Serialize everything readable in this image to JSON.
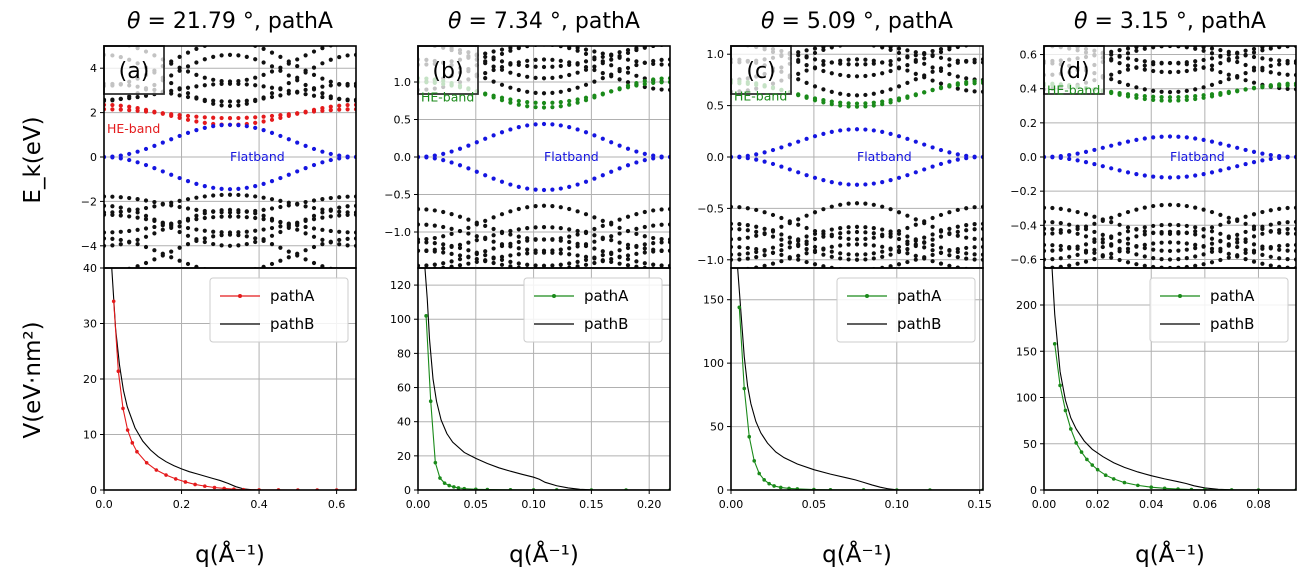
{
  "y_label_top": "E_k(eV)",
  "y_label_bottom": "V(eV·nm²)",
  "x_label": "q(Å⁻¹)",
  "chart_data": [
    {
      "type": "line",
      "panel_letter": "(a)",
      "title_theta": "21.79",
      "title_suffix": ", pathA",
      "accent_color": "#e41a1c",
      "top": {
        "ylim": [
          -5,
          5
        ],
        "yticks": [
          -4,
          -2,
          0,
          2,
          4
        ],
        "he_label": "HE-band",
        "flat_label": "Flatband",
        "he_band": {
          "min": 1.45,
          "max": 2.35,
          "alt_min": 1.75,
          "alt_max": 2.15
        },
        "flat_band": {
          "amplitude": 1.45,
          "center": 0.0
        },
        "remote_bands_upper": [
          {
            "min": 2.5,
            "max": 3.3
          },
          {
            "min": 3.2,
            "max": 5.2
          },
          {
            "min": 2.3,
            "max": 4.6
          }
        ],
        "remote_bands_lower": [
          {
            "min": -1.7,
            "max": -2.5
          },
          {
            "min": -2.6,
            "max": -3.4
          },
          {
            "min": -3.5,
            "max": -5.2
          },
          {
            "min": -2.2,
            "max": -4.0
          }
        ]
      },
      "bottom": {
        "xlim": [
          0,
          0.65
        ],
        "xticks": [
          0.0,
          0.2,
          0.4,
          0.6
        ],
        "xtick_labels": [
          "0.0",
          "0.2",
          "0.4",
          "0.6"
        ],
        "ylim": [
          0,
          40
        ],
        "yticks": [
          0,
          10,
          20,
          30,
          40
        ],
        "legend": [
          "pathA",
          "pathB"
        ],
        "pathA": {
          "x": [
            0.025,
            0.037,
            0.049,
            0.061,
            0.073,
            0.085,
            0.11,
            0.135,
            0.16,
            0.185,
            0.21,
            0.235,
            0.26,
            0.285,
            0.31,
            0.335,
            0.36,
            0.4,
            0.45,
            0.5,
            0.55,
            0.6,
            0.65
          ],
          "y": [
            34.0,
            21.4,
            14.7,
            10.8,
            8.5,
            6.9,
            4.9,
            3.6,
            2.7,
            2.0,
            1.45,
            1.0,
            0.7,
            0.45,
            0.28,
            0.15,
            0.06,
            0.02,
            0.01,
            0.0,
            0.0,
            0.0,
            0.0
          ]
        },
        "pathB": {
          "x": [
            0.02,
            0.03,
            0.04,
            0.05,
            0.06,
            0.08,
            0.1,
            0.12,
            0.14,
            0.16,
            0.18,
            0.2,
            0.22,
            0.24,
            0.26,
            0.28,
            0.3,
            0.32,
            0.34,
            0.36,
            0.38,
            0.4,
            0.5,
            0.65
          ],
          "y": [
            40,
            29,
            22.5,
            18,
            15,
            11.2,
            8.8,
            7.2,
            6.0,
            5.1,
            4.4,
            3.8,
            3.3,
            2.9,
            2.5,
            2.1,
            1.7,
            1.2,
            0.6,
            0.2,
            0.05,
            0.0,
            0.0,
            0.0
          ]
        }
      }
    },
    {
      "type": "line",
      "panel_letter": "(b)",
      "title_theta": "7.34",
      "title_suffix": ", pathA",
      "accent_color": "#1a8a1a",
      "top": {
        "ylim": [
          -1.48,
          1.48
        ],
        "yticks": [
          -1.0,
          -0.5,
          0.0,
          0.5,
          1.0
        ],
        "he_label": "HE-band",
        "flat_label": "Flatband",
        "he_band": {
          "min": 0.66,
          "max": 1.05,
          "alt_min": 0.72,
          "alt_max": 1.0
        },
        "flat_band": {
          "amplitude": 0.44,
          "center": 0.0
        },
        "remote_bands_upper": [
          {
            "min": 0.85,
            "max": 1.3
          },
          {
            "min": 1.0,
            "max": 1.5
          },
          {
            "min": 1.2,
            "max": 1.5
          }
        ],
        "remote_bands_lower": [
          {
            "min": -0.65,
            "max": -1.1
          },
          {
            "min": -0.9,
            "max": -1.25
          },
          {
            "min": -1.1,
            "max": -1.45
          },
          {
            "min": -1.25,
            "max": -1.5
          }
        ]
      },
      "bottom": {
        "xlim": [
          0,
          0.218
        ],
        "xticks": [
          0.0,
          0.05,
          0.1,
          0.15,
          0.2
        ],
        "xtick_labels": [
          "0.00",
          "0.05",
          "0.10",
          "0.15",
          "0.20"
        ],
        "ylim": [
          0,
          130
        ],
        "yticks": [
          0,
          20,
          40,
          60,
          80,
          100,
          120
        ],
        "legend": [
          "pathA",
          "pathB"
        ],
        "pathA": {
          "x": [
            0.007,
            0.011,
            0.015,
            0.019,
            0.023,
            0.027,
            0.031,
            0.035,
            0.04,
            0.05,
            0.06,
            0.08,
            0.1,
            0.12,
            0.15,
            0.18,
            0.218
          ],
          "y": [
            102,
            52,
            16,
            7,
            4,
            2.6,
            1.8,
            1.2,
            0.8,
            0.4,
            0.25,
            0.1,
            0.05,
            0.02,
            0.0,
            0.0,
            0.0
          ]
        },
        "pathB": {
          "x": [
            0.006,
            0.008,
            0.01,
            0.013,
            0.016,
            0.02,
            0.025,
            0.03,
            0.04,
            0.05,
            0.06,
            0.07,
            0.08,
            0.09,
            0.1,
            0.105,
            0.11,
            0.12,
            0.13,
            0.14,
            0.15,
            0.218
          ],
          "y": [
            130,
            112,
            88,
            65,
            52,
            41,
            33,
            28,
            22,
            18.5,
            15.5,
            13,
            11,
            9.2,
            7.5,
            6.3,
            4.5,
            2.5,
            1.2,
            0.4,
            0.1,
            0.0
          ]
        }
      }
    },
    {
      "type": "line",
      "panel_letter": "(c)",
      "title_theta": "5.09",
      "title_suffix": ", pathA",
      "accent_color": "#1a8a1a",
      "top": {
        "ylim": [
          -1.08,
          1.08
        ],
        "yticks": [
          -1.0,
          -0.5,
          0.0,
          0.5,
          1.0
        ],
        "he_label": "HE-band",
        "flat_label": "Flatband",
        "he_band": {
          "min": 0.49,
          "max": 0.74,
          "alt_min": 0.52,
          "alt_max": 0.72
        },
        "flat_band": {
          "amplitude": 0.27,
          "center": 0.0
        },
        "remote_bands_upper": [
          {
            "min": 0.6,
            "max": 0.95
          },
          {
            "min": 0.75,
            "max": 1.1
          },
          {
            "min": 0.9,
            "max": 1.1
          }
        ],
        "remote_bands_lower": [
          {
            "min": -0.45,
            "max": -0.8
          },
          {
            "min": -0.65,
            "max": -0.95
          },
          {
            "min": -0.85,
            "max": -1.1
          },
          {
            "min": -0.7,
            "max": -1.0
          }
        ]
      },
      "bottom": {
        "xlim": [
          0,
          0.152
        ],
        "xticks": [
          0.0,
          0.05,
          0.1,
          0.15
        ],
        "xtick_labels": [
          "0.00",
          "0.05",
          "0.10",
          "0.15"
        ],
        "ylim": [
          0,
          175
        ],
        "yticks": [
          0,
          50,
          100,
          150
        ],
        "legend": [
          "pathA",
          "pathB"
        ],
        "pathA": {
          "x": [
            0.005,
            0.008,
            0.011,
            0.014,
            0.017,
            0.02,
            0.023,
            0.026,
            0.03,
            0.035,
            0.04,
            0.05,
            0.06,
            0.08,
            0.1,
            0.12,
            0.152
          ],
          "y": [
            144,
            80,
            42,
            23,
            13,
            8,
            5,
            3.2,
            2,
            1.2,
            0.8,
            0.35,
            0.15,
            0.05,
            0.0,
            0.0,
            0.0
          ]
        },
        "pathB": {
          "x": [
            0.004,
            0.006,
            0.008,
            0.01,
            0.012,
            0.015,
            0.018,
            0.022,
            0.027,
            0.032,
            0.04,
            0.05,
            0.06,
            0.07,
            0.075,
            0.08,
            0.085,
            0.09,
            0.095,
            0.1,
            0.152
          ],
          "y": [
            175,
            140,
            105,
            82,
            68,
            54,
            45,
            37,
            30,
            25.5,
            20.5,
            16,
            12.5,
            9.5,
            8,
            6,
            4,
            2.2,
            0.9,
            0.2,
            0.0
          ]
        }
      }
    },
    {
      "type": "line",
      "panel_letter": "(d)",
      "title_theta": "3.15",
      "title_suffix": ", pathA",
      "accent_color": "#1a8a1a",
      "top": {
        "ylim": [
          -0.65,
          0.65
        ],
        "yticks": [
          -0.6,
          -0.4,
          -0.2,
          0.0,
          0.2,
          0.4,
          0.6
        ],
        "he_label": "HE-band",
        "flat_label": "Flatband",
        "he_band": {
          "min": 0.33,
          "max": 0.43,
          "alt_min": 0.35,
          "alt_max": 0.42
        },
        "flat_band": {
          "amplitude": 0.12,
          "center": 0.0
        },
        "remote_bands_upper": [
          {
            "min": 0.38,
            "max": 0.55
          },
          {
            "min": 0.48,
            "max": 0.65
          },
          {
            "min": 0.55,
            "max": 0.66
          }
        ],
        "remote_bands_lower": [
          {
            "min": -0.28,
            "max": -0.45
          },
          {
            "min": -0.38,
            "max": -0.55
          },
          {
            "min": -0.5,
            "max": -0.65
          },
          {
            "min": -0.42,
            "max": -0.6
          }
        ]
      },
      "bottom": {
        "xlim": [
          0,
          0.094
        ],
        "xticks": [
          0.0,
          0.02,
          0.04,
          0.06,
          0.08
        ],
        "xtick_labels": [
          "0.00",
          "0.02",
          "0.04",
          "0.06",
          "0.08"
        ],
        "ylim": [
          0,
          240
        ],
        "yticks": [
          0,
          50,
          100,
          150,
          200
        ],
        "legend": [
          "pathA",
          "pathB"
        ],
        "pathA": {
          "x": [
            0.004,
            0.006,
            0.008,
            0.01,
            0.012,
            0.014,
            0.016,
            0.018,
            0.02,
            0.023,
            0.026,
            0.03,
            0.035,
            0.04,
            0.045,
            0.05,
            0.055,
            0.06,
            0.07,
            0.08,
            0.094
          ],
          "y": [
            158,
            113,
            86,
            66,
            51,
            41,
            33,
            27,
            22,
            16,
            12,
            8,
            5,
            3,
            1.8,
            1,
            0.5,
            0.2,
            0.05,
            0.0,
            0.0
          ]
        },
        "pathB": {
          "x": [
            0.003,
            0.004,
            0.006,
            0.008,
            0.01,
            0.012,
            0.015,
            0.018,
            0.022,
            0.026,
            0.03,
            0.035,
            0.04,
            0.045,
            0.05,
            0.053,
            0.056,
            0.06,
            0.065,
            0.07,
            0.094
          ],
          "y": [
            240,
            190,
            128,
            97,
            78,
            66,
            53,
            44,
            36,
            29.5,
            24.5,
            19.5,
            15.5,
            12,
            9,
            7,
            4.5,
            2.2,
            0.8,
            0.2,
            0.0
          ]
        }
      }
    }
  ]
}
